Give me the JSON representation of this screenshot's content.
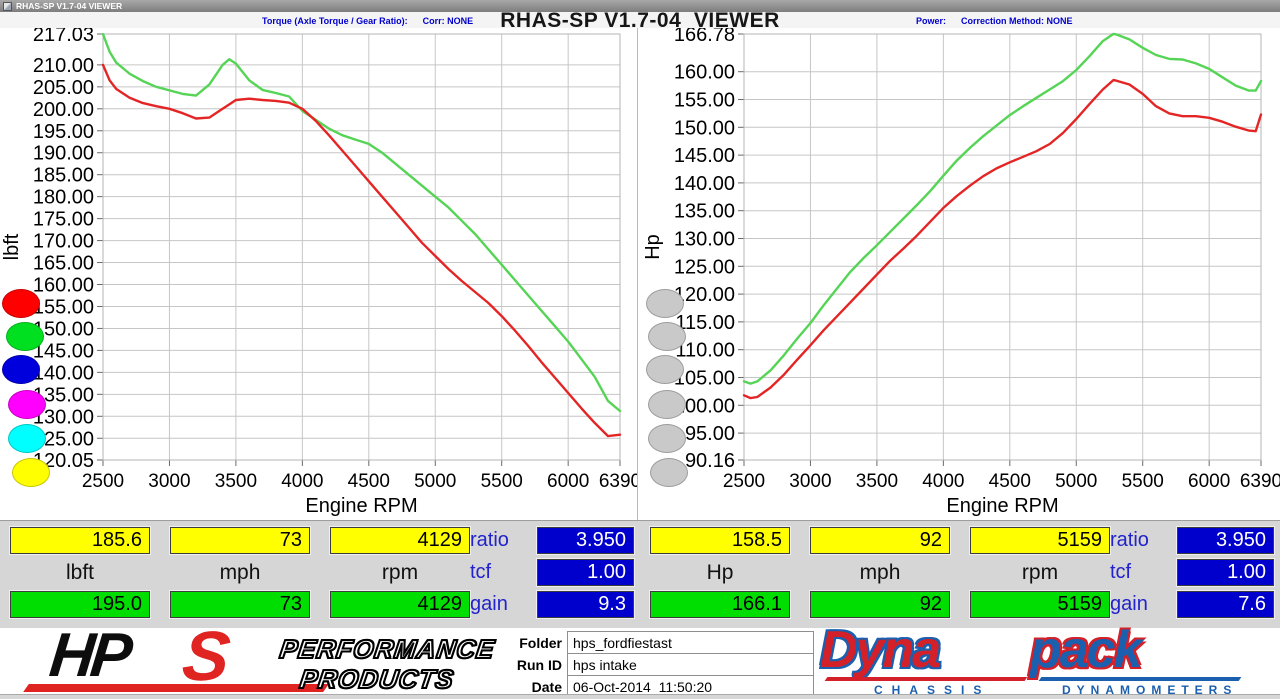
{
  "window": {
    "titlebar": "RHAS-SP V1.7-04  VIEWER",
    "main_title": "RHAS-SP V1.7-04  VIEWER"
  },
  "chart_data": [
    {
      "type": "line",
      "title": "Torque (Axle Torque / Gear Ratio):      Corr: NONE",
      "xlabel": "Engine RPM",
      "ylabel": "lbft",
      "xlim": [
        2500,
        6390
      ],
      "ylim": [
        120.05,
        217.03
      ],
      "grid": true,
      "legend_position": "none",
      "x_ticks": [
        "2500",
        "3000",
        "3500",
        "4000",
        "4500",
        "5000",
        "5500",
        "6000",
        "6390"
      ],
      "y_ticks": [
        "217.03",
        "210.00",
        "205.00",
        "200.00",
        "195.00",
        "190.00",
        "185.00",
        "180.00",
        "175.00",
        "170.00",
        "165.00",
        "160.00",
        "155.00",
        "150.00",
        "145.00",
        "140.00",
        "135.00",
        "130.00",
        "125.00",
        "120.05"
      ],
      "series": [
        {
          "name": "green-run",
          "color": "#55d455",
          "x": [
            2500,
            2550,
            2600,
            2700,
            2800,
            2900,
            3000,
            3100,
            3200,
            3300,
            3400,
            3450,
            3500,
            3600,
            3700,
            3800,
            3900,
            4000,
            4100,
            4200,
            4300,
            4400,
            4500,
            4600,
            4700,
            4800,
            4900,
            5000,
            5100,
            5200,
            5300,
            5400,
            5500,
            5600,
            5700,
            5800,
            5900,
            6000,
            6100,
            6200,
            6300,
            6390
          ],
          "values": [
            217.0,
            213.0,
            210.5,
            208.0,
            206.3,
            205.0,
            204.2,
            203.4,
            203.0,
            205.5,
            210.0,
            211.3,
            210.3,
            206.5,
            204.3,
            203.6,
            202.8,
            199.5,
            197.5,
            195.5,
            194.0,
            193.0,
            192.0,
            190.0,
            187.5,
            185.0,
            182.5,
            180.0,
            177.5,
            174.5,
            171.5,
            168.0,
            164.5,
            161.0,
            157.5,
            154.0,
            150.5,
            147.0,
            143.0,
            139.0,
            133.5,
            131.2
          ]
        },
        {
          "name": "red-run",
          "color": "#e42525",
          "x": [
            2500,
            2550,
            2600,
            2700,
            2800,
            2900,
            3000,
            3100,
            3200,
            3300,
            3400,
            3450,
            3500,
            3600,
            3700,
            3800,
            3900,
            4000,
            4100,
            4200,
            4300,
            4400,
            4500,
            4600,
            4700,
            4800,
            4900,
            5000,
            5100,
            5200,
            5300,
            5400,
            5500,
            5600,
            5700,
            5800,
            5900,
            6000,
            6100,
            6200,
            6300,
            6390
          ],
          "values": [
            210.0,
            206.5,
            204.5,
            202.5,
            201.3,
            200.6,
            200.0,
            199.0,
            197.8,
            198.0,
            200.0,
            201.0,
            202.0,
            202.3,
            202.0,
            201.8,
            201.4,
            200.0,
            197.3,
            194.0,
            190.5,
            187.0,
            183.5,
            180.0,
            176.5,
            173.0,
            169.5,
            166.5,
            163.5,
            160.8,
            158.3,
            155.8,
            152.8,
            149.5,
            146.0,
            142.3,
            138.8,
            135.3,
            131.8,
            128.5,
            125.5,
            125.8
          ]
        }
      ]
    },
    {
      "type": "line",
      "title": "Power:      Correction Method: NONE",
      "xlabel": "Engine RPM",
      "ylabel": "Hp",
      "xlim": [
        2500,
        6390
      ],
      "ylim": [
        90.16,
        166.78
      ],
      "grid": true,
      "legend_position": "none",
      "x_ticks": [
        "2500",
        "3000",
        "3500",
        "4000",
        "4500",
        "5000",
        "5500",
        "6000",
        "6390"
      ],
      "y_ticks": [
        "166.78",
        "160.00",
        "155.00",
        "150.00",
        "145.00",
        "140.00",
        "135.00",
        "130.00",
        "125.00",
        "120.00",
        "115.00",
        "110.00",
        "105.00",
        "100.00",
        "95.00",
        "90.16"
      ],
      "series": [
        {
          "name": "green-run",
          "color": "#55d455",
          "x": [
            2500,
            2550,
            2600,
            2700,
            2800,
            2900,
            3000,
            3100,
            3200,
            3300,
            3400,
            3500,
            3600,
            3700,
            3800,
            3900,
            4000,
            4100,
            4200,
            4300,
            4400,
            4500,
            4600,
            4700,
            4800,
            4900,
            5000,
            5100,
            5200,
            5280,
            5300,
            5400,
            5500,
            5600,
            5700,
            5800,
            5900,
            6000,
            6100,
            6200,
            6300,
            6350,
            6390
          ],
          "values": [
            104.3,
            103.9,
            104.3,
            106.3,
            109.0,
            112.0,
            114.8,
            118.0,
            121.0,
            124.0,
            126.5,
            128.8,
            131.2,
            133.6,
            136.0,
            138.5,
            141.3,
            144.0,
            146.3,
            148.4,
            150.3,
            152.2,
            153.8,
            155.3,
            156.8,
            158.3,
            160.3,
            162.8,
            165.5,
            166.8,
            166.7,
            165.8,
            164.3,
            163.0,
            162.3,
            162.2,
            161.5,
            160.5,
            159.0,
            157.5,
            156.6,
            156.6,
            158.3
          ]
        },
        {
          "name": "red-run",
          "color": "#e42525",
          "x": [
            2500,
            2550,
            2600,
            2700,
            2800,
            2900,
            3000,
            3100,
            3200,
            3300,
            3400,
            3500,
            3600,
            3700,
            3800,
            3900,
            4000,
            4100,
            4200,
            4300,
            4400,
            4500,
            4600,
            4700,
            4800,
            4900,
            5000,
            5100,
            5200,
            5280,
            5300,
            5400,
            5500,
            5600,
            5700,
            5800,
            5900,
            6000,
            6100,
            6200,
            6300,
            6350,
            6390
          ],
          "values": [
            101.8,
            101.3,
            101.5,
            103.2,
            105.5,
            108.2,
            110.8,
            113.5,
            116.0,
            118.5,
            121.0,
            123.5,
            126.0,
            128.2,
            130.5,
            133.0,
            135.5,
            137.6,
            139.5,
            141.2,
            142.6,
            143.7,
            144.7,
            145.7,
            147.0,
            149.0,
            151.5,
            154.2,
            156.8,
            158.5,
            158.4,
            157.7,
            156.0,
            153.8,
            152.5,
            152.0,
            152.0,
            151.7,
            151.0,
            150.1,
            149.4,
            149.3,
            152.3
          ]
        }
      ]
    }
  ],
  "legend_buttons": {
    "torque_colors": [
      "#ff0000",
      "#00e020",
      "#0000dd",
      "#ff00ff",
      "#00ffff",
      "#ffff00"
    ],
    "power_colors": [
      "#c9c9c9",
      "#c9c9c9",
      "#c9c9c9",
      "#c9c9c9",
      "#c9c9c9",
      "#c9c9c9"
    ]
  },
  "panels": {
    "left": {
      "cursor": [
        "185.6",
        "73",
        "4129"
      ],
      "units": [
        "lbft",
        "mph",
        "rpm"
      ],
      "run": [
        "195.0",
        "73",
        "4129"
      ],
      "stats": [
        {
          "label": "ratio",
          "value": "3.950"
        },
        {
          "label": "tcf",
          "value": "1.00"
        },
        {
          "label": "gain",
          "value": "9.3"
        }
      ]
    },
    "right": {
      "cursor": [
        "158.5",
        "92",
        "5159"
      ],
      "units": [
        "Hp",
        "mph",
        "rpm"
      ],
      "run": [
        "166.1",
        "92",
        "5159"
      ],
      "stats": [
        {
          "label": "ratio",
          "value": "3.950"
        },
        {
          "label": "tcf",
          "value": "1.00"
        },
        {
          "label": "gain",
          "value": "7.6"
        }
      ]
    }
  },
  "run_info": {
    "rows": [
      {
        "label": "Folder",
        "value": "hps_fordfiestast"
      },
      {
        "label": "Run ID",
        "value": "hps intake"
      },
      {
        "label": "Date",
        "value": "06-Oct-2014  11:50:20"
      }
    ]
  },
  "logos": {
    "hps": {
      "hp": "HP",
      "s": "S",
      "line1": "PERFORMANCE",
      "line2": "PRODUCTS"
    },
    "dynapack": {
      "part1": "Dyna",
      "part2": "pack",
      "sub1": "CHASSIS",
      "sub2": "DYNAMOMETERS"
    }
  },
  "colors": {
    "curve_green": "#55d455",
    "curve_red": "#e42525",
    "grid": "#c6c6c6",
    "panel_bg": "#d6d6d6",
    "box_yellow": "#ffff00",
    "box_green": "#00dd00",
    "box_blue": "#0000cc",
    "label_blue": "#2222cc",
    "annotation_blue": "#0000cc"
  }
}
